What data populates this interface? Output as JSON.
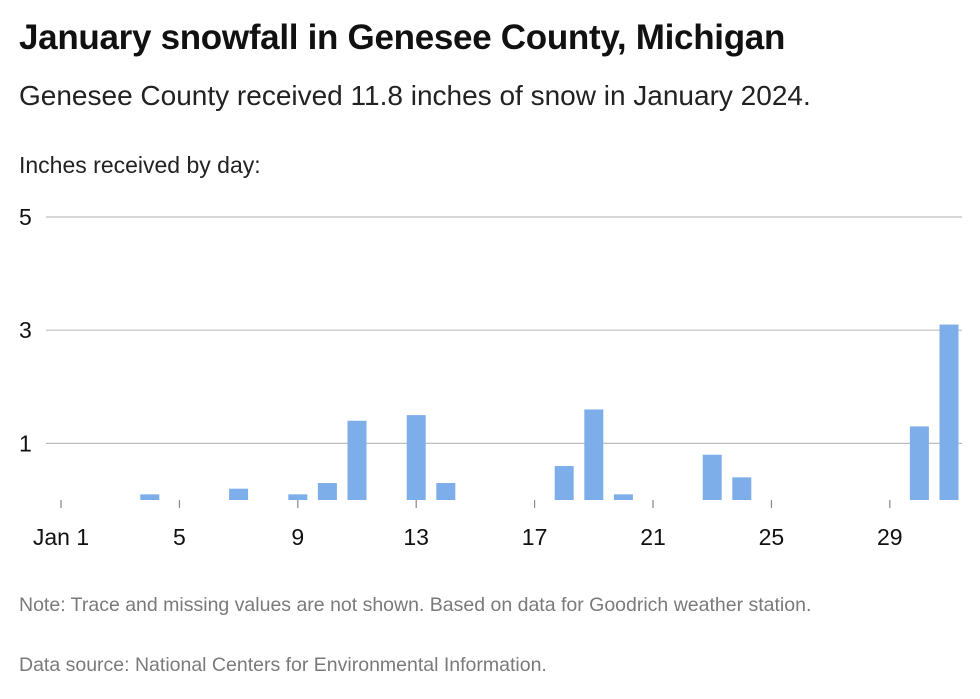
{
  "header": {
    "title": "January snowfall in Genesee County, Michigan",
    "subtitle": "Genesee County received 11.8 inches of snow in January 2024."
  },
  "chart_data": {
    "type": "bar",
    "ylabel": "Inches received by day:",
    "x": [
      1,
      2,
      3,
      4,
      5,
      6,
      7,
      8,
      9,
      10,
      11,
      12,
      13,
      14,
      15,
      16,
      17,
      18,
      19,
      20,
      21,
      22,
      23,
      24,
      25,
      26,
      27,
      28,
      29,
      30,
      31
    ],
    "values": [
      0,
      0,
      0,
      0.1,
      0,
      0,
      0.2,
      0,
      0.1,
      0.3,
      1.4,
      0,
      1.5,
      0.3,
      0,
      0,
      0,
      0.6,
      1.6,
      0.1,
      0,
      0,
      0.8,
      0.4,
      0,
      0,
      0,
      0,
      0,
      1.3,
      3.1
    ],
    "ylim": [
      0,
      5
    ],
    "y_ticks": [
      "5",
      "3",
      "1"
    ],
    "y_tick_values": [
      5,
      3,
      1
    ],
    "x_ticks": [
      "Jan 1",
      "5",
      "9",
      "13",
      "17",
      "21",
      "25",
      "29"
    ],
    "x_tick_values": [
      1,
      5,
      9,
      13,
      17,
      21,
      25,
      29
    ],
    "grid": true,
    "bar_color": "#7eaeea",
    "grid_color": "#bdbdbd"
  },
  "footer": {
    "note": "Note: Trace and missing values are not shown. Based on data for Goodrich weather station.",
    "source": "Data source: National Centers for Environmental Information."
  }
}
